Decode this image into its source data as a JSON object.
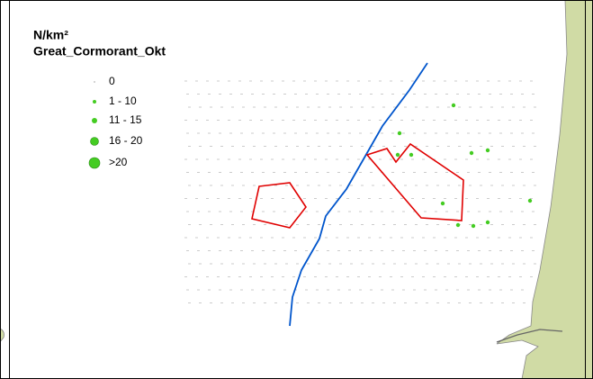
{
  "legend": {
    "title": "N/km²",
    "subtitle": "Great_Cormorant_Okt",
    "items": [
      "0",
      "1 - 10",
      "11 - 15",
      "16 - 20",
      ">20"
    ]
  }
}
